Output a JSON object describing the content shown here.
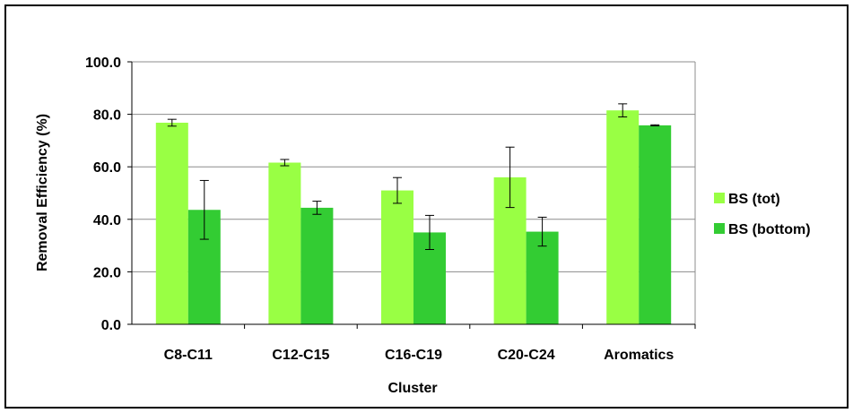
{
  "colors": {
    "series_tot": "#99ff44",
    "series_bottom": "#33cc33",
    "gridline": "#8c8c8c",
    "axis": "#000000"
  },
  "chart_data": {
    "type": "bar",
    "title": "",
    "xlabel": "Cluster",
    "ylabel": "Removal Efficiency (%)",
    "ylim": [
      0,
      100
    ],
    "yticks": [
      "0.0",
      "20.0",
      "40.0",
      "60.0",
      "80.0",
      "100.0"
    ],
    "grid": true,
    "legend_position": "right",
    "categories": [
      "C8-C11",
      "C12-C15",
      "C16-C19",
      "C20-C24",
      "Aromatics"
    ],
    "series": [
      {
        "name": "BS (tot)",
        "color": "#99ff44",
        "values": [
          76.8,
          61.6,
          51.0,
          56.0,
          81.5
        ],
        "error": [
          1.3,
          1.2,
          4.9,
          11.5,
          2.5
        ]
      },
      {
        "name": "BS (bottom)",
        "color": "#33cc33",
        "values": [
          43.6,
          44.4,
          35.0,
          35.3,
          75.8
        ],
        "error": [
          11.2,
          2.5,
          6.5,
          5.5,
          0.2
        ]
      }
    ]
  }
}
